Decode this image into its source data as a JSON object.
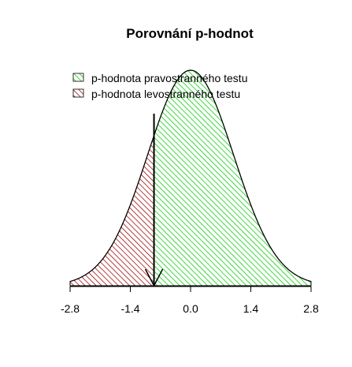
{
  "chart_data": {
    "type": "area",
    "title": "Porovnání p-hodnot",
    "xlabel": "",
    "ylabel": "",
    "xlim": [
      -2.8,
      2.8
    ],
    "x_ticks": [
      -2.8,
      -1.4,
      0.0,
      1.4,
      2.8
    ],
    "x_tick_labels": [
      "-2.8",
      "-1.4",
      "0.0",
      "1.4",
      "2.8"
    ],
    "curve": "standard normal density",
    "test_statistic": -0.85,
    "regions": [
      {
        "name": "p-hodnota pravostranného testu",
        "from": -0.85,
        "to": 2.8,
        "color": "#00cc00",
        "fill": "hatched"
      },
      {
        "name": "p-hodnota levostranného testu",
        "from": -2.8,
        "to": -0.85,
        "color": "#990000",
        "fill": "hatched"
      }
    ],
    "legend": {
      "placement": "top-left",
      "entries": [
        "p-hodnota pravostranného testu",
        "p-hodnota levostranného testu"
      ]
    },
    "annotation": "arrow pointing down to test statistic"
  }
}
